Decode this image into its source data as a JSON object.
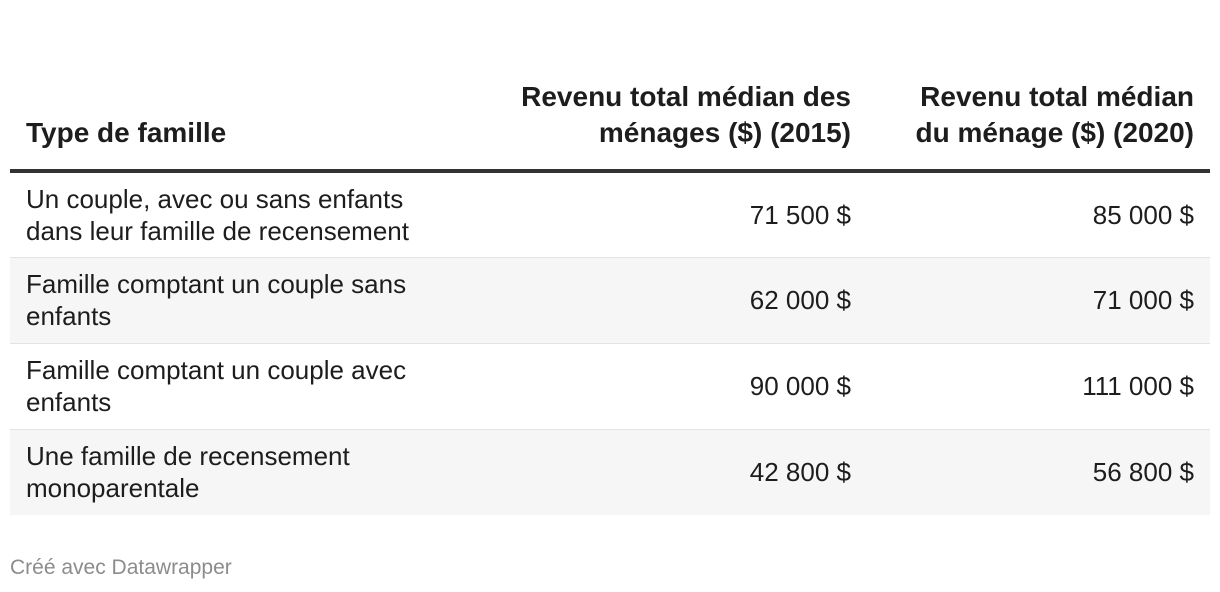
{
  "chart_data": {
    "type": "table",
    "columns": [
      "Type de famille",
      "Revenu total médian des ménages ($) (2015)",
      "Revenu total médian du ménage ($) (2020)"
    ],
    "rows": [
      {
        "type": "Un couple, avec ou sans enfants dans leur famille de recensement",
        "v2015": "71 500 $",
        "v2020": "85 000 $"
      },
      {
        "type": "Famille comptant un couple sans enfants",
        "v2015": "62 000 $",
        "v2020": "71 000 $"
      },
      {
        "type": "Famille comptant un couple avec enfants",
        "v2015": "90 000 $",
        "v2020": "111 000 $"
      },
      {
        "type": "Une famille de recensement monoparentale",
        "v2015": "42 800 $",
        "v2020": "56 800 $"
      }
    ],
    "values_2015": [
      71500,
      62000,
      90000,
      42800
    ],
    "values_2020": [
      85000,
      71000,
      111000,
      56800
    ]
  },
  "footer": {
    "credit": "Créé avec Datawrapper"
  },
  "colors": {
    "header_rule": "#333333",
    "row_stripe": "#f6f6f6",
    "row_divider": "#e3e3e3",
    "footer_text": "#8c8c8c"
  }
}
